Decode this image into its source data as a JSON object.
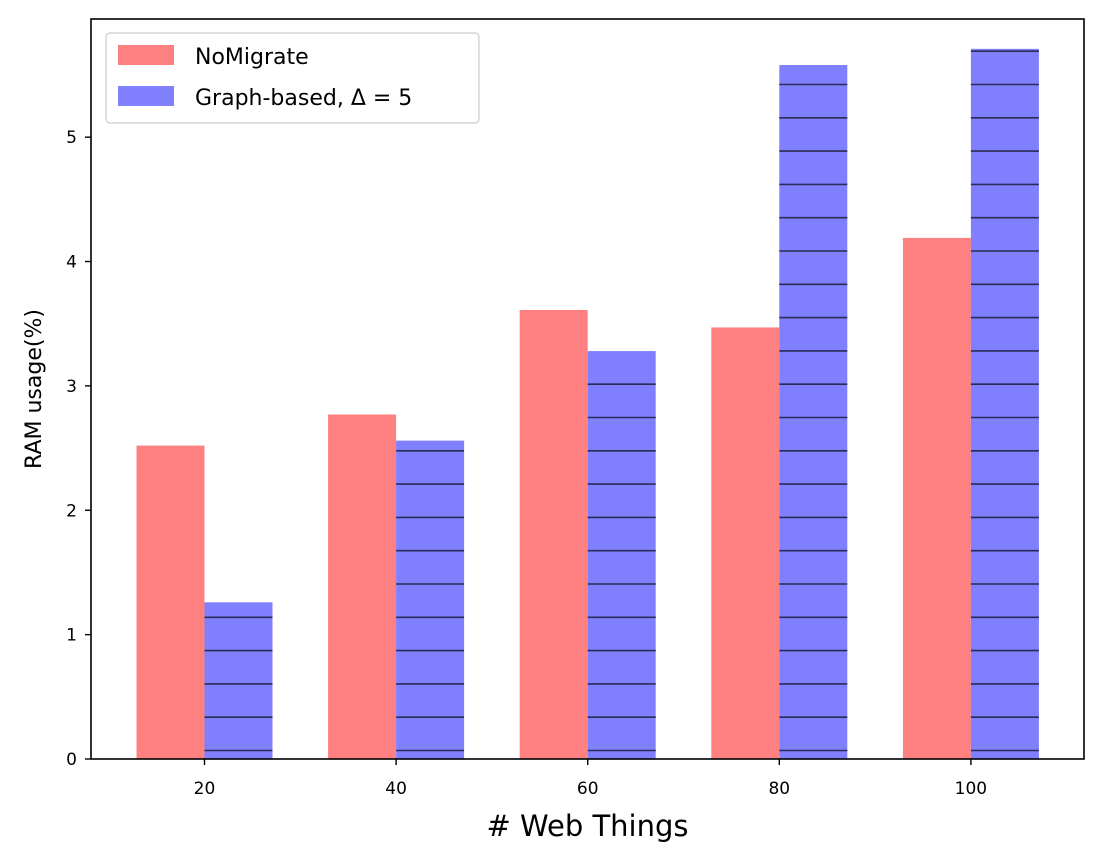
{
  "chart_data": {
    "type": "bar",
    "categories": [
      "20",
      "40",
      "60",
      "80",
      "100"
    ],
    "series": [
      {
        "name": "NoMigrate",
        "values": [
          2.52,
          2.77,
          3.61,
          3.47,
          4.19
        ],
        "color": "#ff8080",
        "hatch": "none"
      },
      {
        "name": "Graph-based, Δ = 5",
        "values": [
          1.26,
          2.56,
          3.28,
          5.58,
          5.71
        ],
        "color": "#8080ff",
        "hatch": "horizontal"
      }
    ],
    "xlabel": "# Web Things",
    "ylabel": "RAM usage(%)",
    "ylim": [
      0,
      5.95
    ],
    "yticks": [
      "0",
      "1",
      "2",
      "3",
      "4",
      "5"
    ],
    "legend_position": "top-left",
    "grid": false
  }
}
